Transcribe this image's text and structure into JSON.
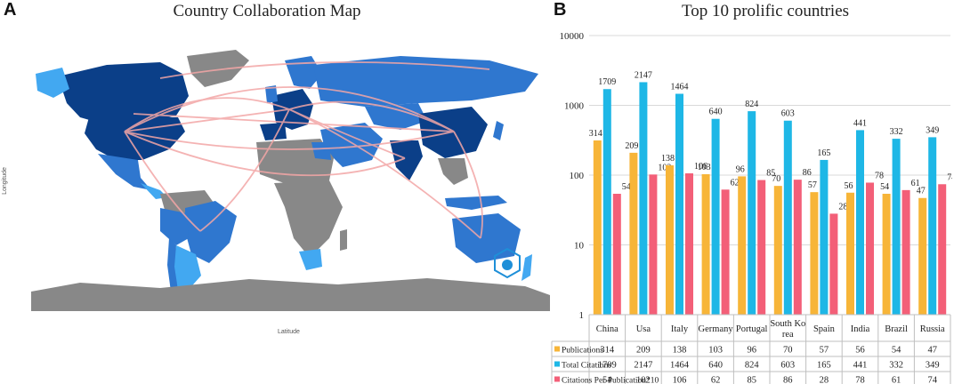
{
  "panels": {
    "a": {
      "letter": "A",
      "title": "Country Collaboration Map",
      "xlabel": "Latitude",
      "ylabel": "Longitude"
    },
    "b": {
      "letter": "B",
      "title": "Top 10 prolific countries"
    }
  },
  "colors": {
    "publications": "#F7B538",
    "total_citations": "#1EB7E6",
    "citations_per_pub": "#F35F78",
    "map_high": "#0B3F88",
    "map_mid": "#2F77CF",
    "map_low": "#42A8F1",
    "map_none": "#888888",
    "links": "#F3A6A6"
  },
  "chart_data": [
    {
      "type": "map",
      "title": "Country Collaboration Map",
      "xlabel": "Latitude",
      "ylabel": "Longitude"
    },
    {
      "type": "bar",
      "title": "Top 10 prolific countries",
      "scale": "log",
      "ylim": [
        1,
        10000
      ],
      "y_ticks": [
        "10000",
        "1000",
        "100",
        "10",
        "1"
      ],
      "categories": [
        "China",
        "Usa",
        "Italy",
        "Germany",
        "Portugal",
        "South Ko rea",
        "Spain",
        "India",
        "Brazil",
        "Russia"
      ],
      "series": [
        {
          "name": "Publications",
          "values": [
            314,
            209,
            138,
            103,
            96,
            70,
            57,
            56,
            54,
            47
          ]
        },
        {
          "name": "Total Citations",
          "values": [
            1709,
            2147,
            1464,
            640,
            824,
            603,
            165,
            441,
            332,
            349
          ]
        },
        {
          "name": "Citations Per Publication*10",
          "values": [
            54,
            102,
            106,
            62,
            85,
            86,
            28,
            78,
            61,
            74
          ]
        }
      ]
    }
  ]
}
